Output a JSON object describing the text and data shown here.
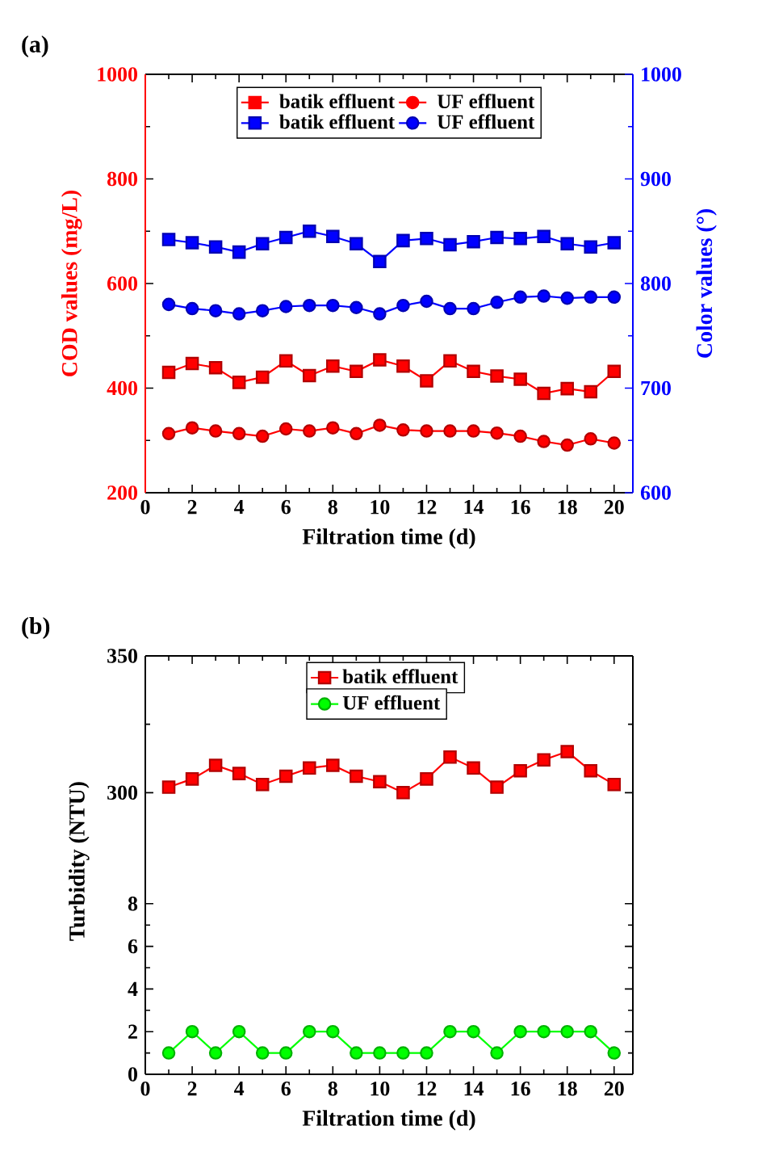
{
  "chart_data": [
    {
      "type": "line",
      "title": "(a)",
      "xlabel": "Filtration time (d)",
      "ylabel": "COD values (mg/L)",
      "y2label": "Color values (°)",
      "x": [
        1,
        2,
        3,
        4,
        5,
        6,
        7,
        8,
        9,
        10,
        11,
        12,
        13,
        14,
        15,
        16,
        17,
        18,
        19,
        20
      ],
      "xlim": [
        0,
        20.8
      ],
      "xticks": [
        0,
        2,
        4,
        6,
        8,
        10,
        12,
        14,
        16,
        18,
        20
      ],
      "ylim": [
        200,
        1000
      ],
      "yticks": [
        200,
        400,
        600,
        800,
        1000
      ],
      "y2lim": [
        600,
        1000
      ],
      "y2ticks": [
        600,
        700,
        800,
        900,
        1000
      ],
      "legend": "top",
      "series": [
        {
          "name": "batik effluent",
          "color": "#ff0000",
          "marker": "square",
          "values": [
            430,
            447,
            439,
            411,
            421,
            452,
            424,
            442,
            432,
            454,
            442,
            414,
            452,
            432,
            423,
            417,
            390,
            399,
            393,
            432
          ]
        },
        {
          "name": "UF effluent",
          "color": "#ff0000",
          "marker": "circle",
          "values": [
            313,
            324,
            318,
            313,
            308,
            322,
            318,
            324,
            313,
            329,
            320,
            318,
            318,
            318,
            314,
            308,
            298,
            291,
            303,
            295
          ]
        },
        {
          "name": "batik effluent",
          "color": "#0000ff",
          "marker": "square",
          "axis": "y2",
          "values": [
            842,
            839,
            835,
            830,
            838,
            844,
            850,
            845,
            838,
            821,
            841,
            843,
            837,
            840,
            844,
            843,
            845,
            838,
            835,
            839
          ]
        },
        {
          "name": "UF effluent",
          "color": "#0000ff",
          "marker": "circle",
          "axis": "y2",
          "values": [
            780,
            776,
            774,
            771,
            774,
            778,
            779,
            779,
            777,
            771,
            779,
            783,
            776,
            776,
            782,
            787,
            788,
            786,
            787,
            787
          ]
        }
      ]
    },
    {
      "type": "line",
      "title": "(b)",
      "x": [
        1,
        2,
        3,
        4,
        5,
        6,
        7,
        8,
        9,
        10,
        11,
        12,
        13,
        14,
        15,
        16,
        17,
        18,
        19,
        20
      ],
      "xlim": [
        0,
        20.8
      ],
      "xticks": [
        0,
        2,
        4,
        6,
        8,
        10,
        12,
        14,
        16,
        18,
        20
      ],
      "tick_labels": "y",
      "ylim": [
        275,
        350
      ],
      "yticks": [
        300,
        350
      ],
      "legend": "top",
      "series": [
        {
          "name": "batik effluent",
          "color": "#ff0000",
          "marker": "square",
          "values": [
            302,
            305,
            310,
            307,
            303,
            306,
            309,
            310,
            306,
            304,
            300,
            305,
            313,
            309,
            302,
            308,
            312,
            315,
            308,
            303
          ]
        }
      ]
    },
    {
      "type": "line",
      "xlabel": "Filtration time (d)",
      "ylabel": "Turbidity (NTU)",
      "x": [
        1,
        2,
        3,
        4,
        5,
        6,
        7,
        8,
        9,
        10,
        11,
        12,
        13,
        14,
        15,
        16,
        17,
        18,
        19,
        20
      ],
      "xlim": [
        0,
        20.8
      ],
      "xticks": [
        0,
        2,
        4,
        6,
        8,
        10,
        12,
        14,
        16,
        18,
        20
      ],
      "ylim": [
        0,
        10
      ],
      "yticks": [
        0,
        2,
        4,
        6,
        8
      ],
      "legend": "top",
      "series": [
        {
          "name": "UF effluent",
          "color": "#00ff00",
          "marker": "circle",
          "values": [
            1,
            2,
            1,
            2,
            1,
            1,
            2,
            2,
            1,
            1,
            1,
            1,
            2,
            2,
            1,
            2,
            2,
            2,
            2,
            1
          ]
        }
      ]
    }
  ]
}
